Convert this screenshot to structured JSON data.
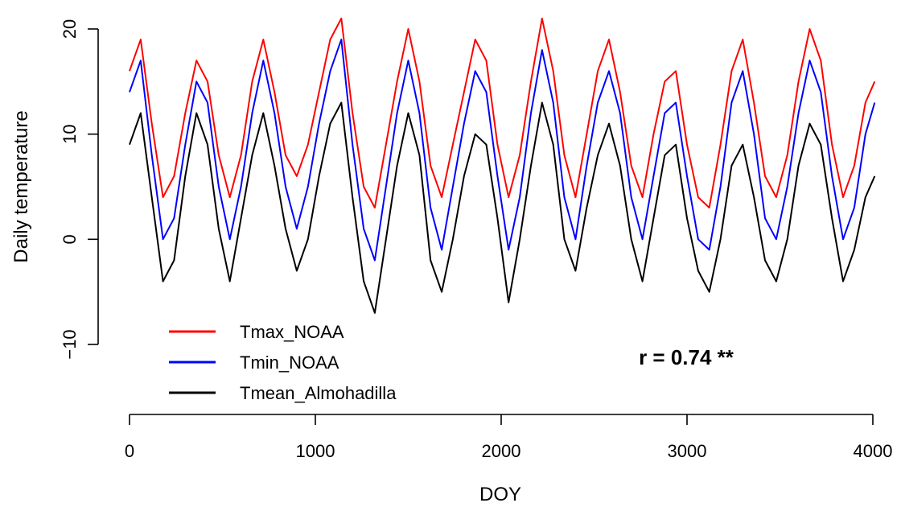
{
  "chart_data": {
    "type": "line",
    "title": "",
    "xlabel": "DOY",
    "ylabel": "Daily temperature",
    "xlim": [
      0,
      4000
    ],
    "ylim": [
      -10,
      20
    ],
    "x_ticks": [
      0,
      1000,
      2000,
      3000,
      4000
    ],
    "y_ticks": [
      -10,
      0,
      10,
      20
    ],
    "x_tick_labels": [
      "0",
      "1000",
      "2000",
      "3000",
      "4000"
    ],
    "y_tick_labels": [
      "−10",
      "0",
      "10",
      "20"
    ],
    "grid": false,
    "legend_position": "bottom-left",
    "annotation": "r = 0.74 **",
    "x": [
      0,
      60,
      120,
      180,
      240,
      300,
      360,
      420,
      480,
      540,
      600,
      660,
      720,
      780,
      840,
      900,
      960,
      1020,
      1080,
      1140,
      1200,
      1260,
      1320,
      1380,
      1440,
      1500,
      1560,
      1620,
      1680,
      1740,
      1800,
      1860,
      1920,
      1980,
      2040,
      2100,
      2160,
      2220,
      2280,
      2340,
      2400,
      2460,
      2520,
      2580,
      2640,
      2700,
      2760,
      2820,
      2880,
      2940,
      3000,
      3060,
      3120,
      3180,
      3240,
      3300,
      3360,
      3420,
      3480,
      3540,
      3600,
      3660,
      3720,
      3780,
      3840,
      3900,
      3960,
      4010
    ],
    "series": [
      {
        "name": "Tmax_NOAA",
        "color": "#ff0000",
        "values": [
          16,
          19,
          11,
          4,
          6,
          12,
          17,
          15,
          8,
          4,
          8,
          15,
          19,
          14,
          8,
          6,
          9,
          14,
          19,
          21,
          12,
          5,
          3,
          9,
          15,
          20,
          15,
          7,
          4,
          9,
          14,
          19,
          17,
          9,
          4,
          8,
          15,
          21,
          16,
          8,
          4,
          10,
          16,
          19,
          14,
          7,
          4,
          10,
          15,
          16,
          9,
          4,
          3,
          9,
          16,
          19,
          13,
          6,
          4,
          8,
          15,
          20,
          17,
          9,
          4,
          7,
          13,
          15
        ]
      },
      {
        "name": "Tmin_NOAA",
        "color": "#0000ff",
        "values": [
          14,
          17,
          8,
          0,
          2,
          9,
          15,
          13,
          5,
          0,
          5,
          12,
          17,
          12,
          5,
          1,
          5,
          11,
          16,
          19,
          9,
          1,
          -2,
          5,
          12,
          17,
          12,
          3,
          -1,
          5,
          11,
          16,
          14,
          6,
          -1,
          4,
          12,
          18,
          13,
          4,
          0,
          7,
          13,
          16,
          12,
          4,
          0,
          6,
          12,
          13,
          6,
          0,
          -1,
          5,
          13,
          16,
          10,
          2,
          0,
          5,
          12,
          17,
          14,
          6,
          0,
          3,
          10,
          13
        ]
      },
      {
        "name": "Tmean_Almohadilla",
        "color": "#000000",
        "values": [
          9,
          12,
          4,
          -4,
          -2,
          6,
          12,
          9,
          1,
          -4,
          2,
          8,
          12,
          7,
          1,
          -3,
          0,
          6,
          11,
          13,
          4,
          -4,
          -7,
          0,
          7,
          12,
          8,
          -2,
          -5,
          0,
          6,
          10,
          9,
          2,
          -6,
          0,
          7,
          13,
          9,
          0,
          -3,
          3,
          8,
          11,
          7,
          0,
          -4,
          2,
          8,
          9,
          2,
          -3,
          -5,
          0,
          7,
          9,
          4,
          -2,
          -4,
          0,
          7,
          11,
          9,
          2,
          -4,
          -1,
          4,
          6
        ]
      }
    ]
  }
}
